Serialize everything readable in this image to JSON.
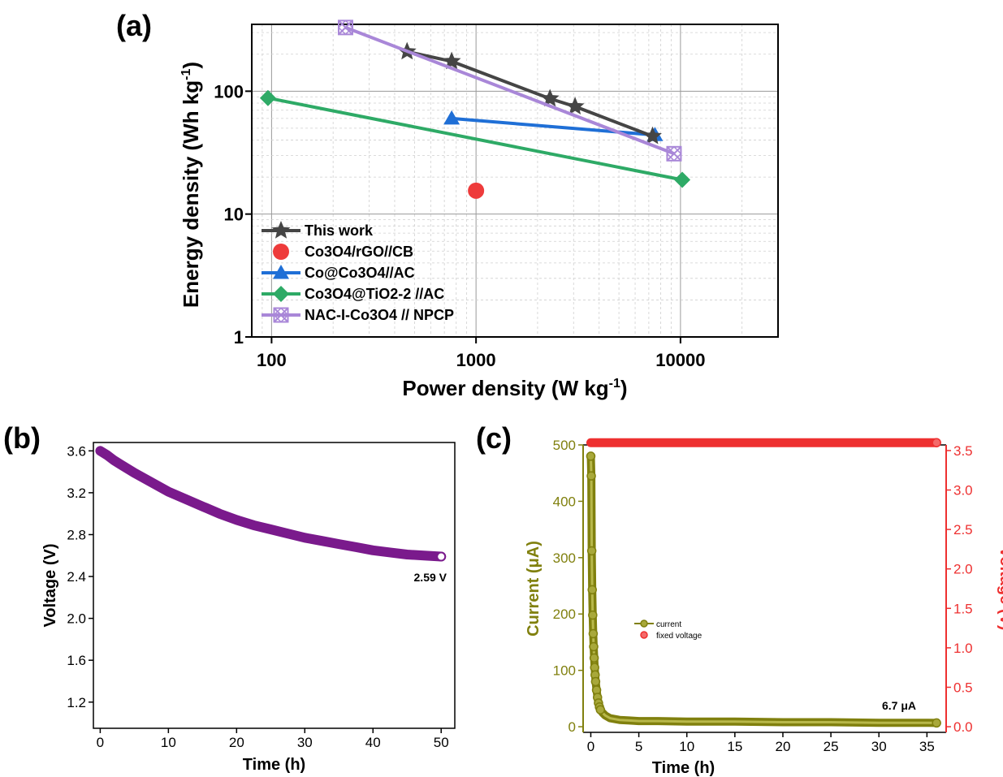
{
  "panels": {
    "a": "(a)",
    "b": "(b)",
    "c": "(c)"
  },
  "chart_data": [
    {
      "id": "a",
      "type": "scatter",
      "xscale": "log",
      "yscale": "log",
      "xlabel": "Power density (W kg",
      "xlabel_sup": "-1",
      "xlabel_end": ")",
      "ylabel": "Energy density (Wh kg",
      "ylabel_sup": "-1",
      "ylabel_end": ")",
      "xlim": [
        80,
        30000
      ],
      "ylim": [
        1,
        350
      ],
      "xticks": [
        {
          "v": 100,
          "label": "100"
        },
        {
          "v": 1000,
          "label": "1000"
        },
        {
          "v": 10000,
          "label": "10000"
        }
      ],
      "yticks": [
        {
          "v": 1,
          "label": "1"
        },
        {
          "v": 10,
          "label": "10"
        },
        {
          "v": 100,
          "label": "100"
        }
      ],
      "grid": true,
      "legend_position": "bottom-left",
      "series": [
        {
          "name": "This work",
          "marker": "star",
          "color": "#454545",
          "line": true,
          "x": [
            460,
            760,
            2300,
            3050,
            7300
          ],
          "y": [
            210,
            175,
            87,
            75,
            43
          ]
        },
        {
          "name": "Co3O4/rGO//CB",
          "marker": "circle",
          "color": "#ee3b3b",
          "line": false,
          "x": [
            1000
          ],
          "y": [
            15.5
          ]
        },
        {
          "name": "Co@Co3O4//AC",
          "marker": "triangle",
          "color": "#1f6fd6",
          "line": true,
          "x": [
            760,
            7500
          ],
          "y": [
            60,
            44
          ]
        },
        {
          "name": "Co3O4@TiO2-2 //AC",
          "marker": "diamond",
          "color": "#2eaa66",
          "line": true,
          "x": [
            96,
            10200
          ],
          "y": [
            88,
            19
          ]
        },
        {
          "name": "NAC-I-Co3O4 // NPCP",
          "marker": "xsquare",
          "color": "#a987d8",
          "line": true,
          "x": [
            230,
            9300
          ],
          "y": [
            330,
            31
          ]
        }
      ]
    },
    {
      "id": "b",
      "type": "line",
      "xlabel": "Time (h)",
      "ylabel": "Voltage (V)",
      "xlim": [
        -1,
        52
      ],
      "ylim": [
        0.95,
        3.68
      ],
      "xticks": [
        0,
        10,
        20,
        30,
        40,
        50
      ],
      "yticks": [
        "1.2",
        "1.6",
        "2.0",
        "2.4",
        "2.8",
        "3.2",
        "3.6"
      ],
      "grid": false,
      "series": [
        {
          "name": "",
          "color": "#7a1a8c",
          "x": [
            0,
            1,
            2,
            3,
            5,
            7.5,
            10,
            12.5,
            15,
            17.5,
            20,
            22.5,
            25,
            27.5,
            30,
            32.5,
            35,
            37.5,
            40,
            42.5,
            45,
            47.5,
            50
          ],
          "y": [
            3.6,
            3.56,
            3.51,
            3.47,
            3.39,
            3.3,
            3.21,
            3.14,
            3.07,
            3.0,
            2.94,
            2.89,
            2.85,
            2.81,
            2.77,
            2.74,
            2.71,
            2.68,
            2.65,
            2.63,
            2.61,
            2.6,
            2.59
          ]
        }
      ],
      "annotation": "2.59 V"
    },
    {
      "id": "c",
      "type": "line",
      "xlabel": "Time (h)",
      "ylabel_left": "Current (μA)",
      "ylabel_right": "Voltage (V)",
      "xlim": [
        -0.8,
        37
      ],
      "ylim_left": [
        -10,
        500
      ],
      "ylim_right": [
        -0.0714,
        3.5714
      ],
      "xticks": [
        0,
        5,
        10,
        15,
        20,
        25,
        30,
        35
      ],
      "yticks_left": [
        0,
        100,
        200,
        300,
        400,
        500
      ],
      "yticks_right": [
        "0.0",
        "0.5",
        "1.0",
        "1.5",
        "2.0",
        "2.5",
        "3.0",
        "3.5"
      ],
      "left_color": "#80800e",
      "right_color": "#ee3030",
      "legend_position": "center-left",
      "series": [
        {
          "name": "current",
          "axis": "left",
          "color": "#80800e",
          "x": [
            0,
            0.05,
            0.1,
            0.15,
            0.2,
            0.25,
            0.3,
            0.35,
            0.4,
            0.45,
            0.5,
            0.6,
            0.7,
            0.8,
            0.9,
            1.0,
            1.2,
            1.5,
            2,
            3,
            4,
            5,
            7,
            10,
            15,
            20,
            25,
            30,
            35,
            36
          ],
          "y": [
            480,
            445,
            312,
            243,
            198,
            165,
            142,
            122,
            105,
            92,
            80,
            65,
            52,
            42,
            35,
            30,
            25,
            20,
            15,
            12,
            11,
            10,
            10,
            9,
            9,
            8,
            8,
            7,
            7,
            6.7
          ]
        },
        {
          "name": "fixed voltage",
          "axis": "right",
          "color": "#ee3030",
          "x": [
            0,
            36
          ],
          "y": [
            3.6,
            3.6
          ]
        }
      ],
      "annotation": "6.7 μA"
    }
  ]
}
